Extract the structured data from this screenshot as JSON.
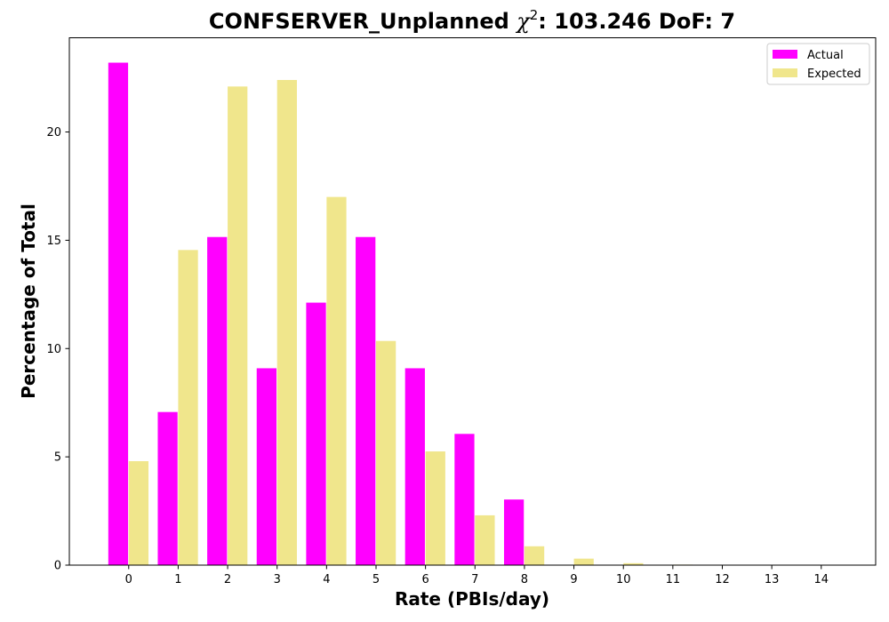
{
  "chart_data": {
    "type": "bar",
    "title": "CONFSERVER_Unplanned",
    "title_chi_symbol": "χ",
    "title_chi_exp": "2",
    "title_stats": ": 103.246 DoF: 7",
    "xlabel": "Rate (PBIs/day)",
    "ylabel": "Percentage of Total",
    "categories": [
      "0",
      "1",
      "2",
      "3",
      "4",
      "5",
      "6",
      "7",
      "8",
      "9",
      "10",
      "11",
      "12",
      "13",
      "14"
    ],
    "series": [
      {
        "name": "Actual",
        "color": "#ff00ff",
        "values": [
          23.2,
          7.07,
          15.15,
          9.09,
          12.12,
          15.15,
          9.09,
          6.06,
          3.03,
          0,
          0,
          0,
          0,
          0,
          0
        ]
      },
      {
        "name": "Expected",
        "color": "#f0e68c",
        "values": [
          4.8,
          14.55,
          22.1,
          22.4,
          17.0,
          10.35,
          5.25,
          2.3,
          0.87,
          0.3,
          0.09,
          0.025,
          0.006,
          0.001,
          0.0002
        ]
      }
    ],
    "yticks": [
      0,
      5,
      10,
      15,
      20
    ],
    "ylim": [
      0,
      24.35
    ],
    "xlim": [
      -1.2,
      15.1
    ],
    "legend_position": "top-right",
    "grid": false
  }
}
